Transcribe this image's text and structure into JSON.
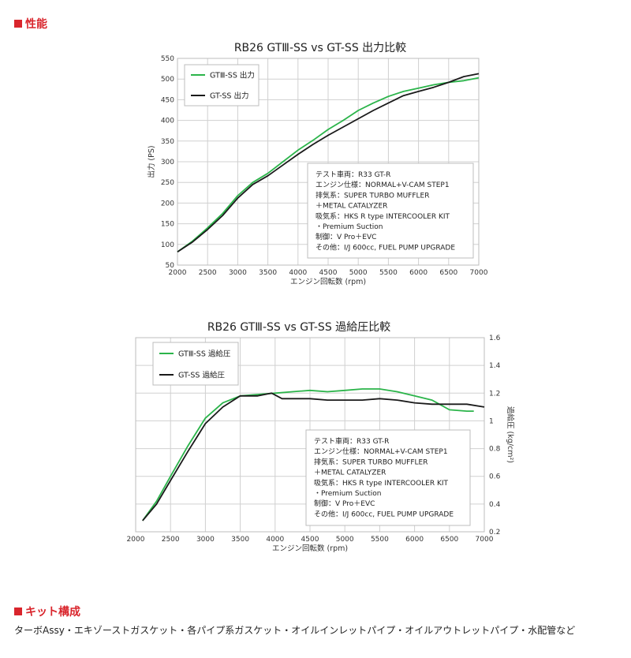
{
  "sections": {
    "performance": "性能",
    "kit": "キット構成",
    "kit_text": "ターボAssy・エキゾーストガスケット・各パイプ系ガスケット・オイルインレットパイプ・オイルアウトレットパイプ・水配管など"
  },
  "colors": {
    "accent": "#d9252c",
    "series_a": "#2bb44a",
    "series_b": "#1a1a1a"
  },
  "chart_data": [
    {
      "type": "line",
      "title": "RB26 GTⅢ-SS vs GT-SS 出力比較",
      "xlabel": "エンジン回転数 (rpm)",
      "ylabel": "出力 (PS)",
      "xlim": [
        2000,
        7000
      ],
      "ylim": [
        50,
        550
      ],
      "xticks": [
        2000,
        2500,
        3000,
        3500,
        4000,
        4500,
        5000,
        5500,
        6000,
        6500,
        7000
      ],
      "yticks": [
        50,
        100,
        150,
        200,
        250,
        300,
        350,
        400,
        450,
        500,
        550
      ],
      "legend": "top-left",
      "series": [
        {
          "name": "GTⅢ-SS 出力",
          "color": "#2bb44a",
          "x": [
            2000,
            2250,
            2500,
            2750,
            3000,
            3250,
            3500,
            3750,
            4000,
            4250,
            4500,
            4750,
            5000,
            5250,
            5500,
            5750,
            6000,
            6250,
            6500,
            6750,
            7000
          ],
          "y": [
            82,
            108,
            140,
            175,
            218,
            250,
            272,
            300,
            328,
            352,
            378,
            400,
            424,
            442,
            458,
            470,
            478,
            486,
            492,
            496,
            503
          ]
        },
        {
          "name": "GT-SS 出力",
          "color": "#1a1a1a",
          "x": [
            2000,
            2250,
            2500,
            2750,
            3000,
            3250,
            3500,
            3750,
            4000,
            4250,
            4500,
            4750,
            5000,
            5250,
            5500,
            5750,
            6000,
            6250,
            6500,
            6750,
            7000
          ],
          "y": [
            82,
            106,
            136,
            170,
            212,
            245,
            266,
            292,
            318,
            342,
            364,
            384,
            404,
            424,
            442,
            460,
            470,
            480,
            492,
            506,
            513
          ]
        }
      ],
      "annotations": [
        "テスト車両：R33 GT-R",
        "エンジン仕様：NORMAL+V-CAM STEP1",
        "排気系：SUPER TURBO MUFFLER",
        "＋METAL CATALYZER",
        "吸気系：HKS R type INTERCOOLER KIT",
        "・Premium Suction",
        "制御：V Pro＋EVC",
        "その他：I/J 600cc, FUEL PUMP UPGRADE"
      ]
    },
    {
      "type": "line",
      "title": "RB26 GTⅢ-SS vs GT-SS 過給圧比較",
      "xlabel": "エンジン回転数 (rpm)",
      "ylabel": "過給圧 (kg/cm²)",
      "xlim": [
        2000,
        7000
      ],
      "ylim": [
        0.2,
        1.6
      ],
      "xticks": [
        2000,
        2500,
        3000,
        3500,
        4000,
        4500,
        5000,
        5500,
        6000,
        6500,
        7000
      ],
      "yticks": [
        0.2,
        0.4,
        0.6,
        0.8,
        1,
        1.2,
        1.4,
        1.6
      ],
      "ytick_labels": [
        "0.2",
        "0.4",
        "0.6",
        "0.8",
        "1",
        "1.2",
        "1.4",
        "1.6"
      ],
      "legend": "top-left",
      "series": [
        {
          "name": "GTⅢ-SS 過給圧",
          "color": "#2bb44a",
          "x": [
            2100,
            2300,
            2500,
            2750,
            3000,
            3250,
            3500,
            3750,
            4000,
            4250,
            4500,
            4750,
            5000,
            5250,
            5500,
            5750,
            6000,
            6250,
            6500,
            6750,
            6850
          ],
          "y": [
            0.28,
            0.42,
            0.6,
            0.82,
            1.02,
            1.13,
            1.18,
            1.19,
            1.2,
            1.21,
            1.22,
            1.21,
            1.22,
            1.23,
            1.23,
            1.21,
            1.18,
            1.15,
            1.08,
            1.07,
            1.07
          ]
        },
        {
          "name": "GT-SS 過給圧",
          "color": "#1a1a1a",
          "x": [
            2100,
            2300,
            2500,
            2750,
            3000,
            3250,
            3500,
            3750,
            3950,
            4100,
            4500,
            4750,
            5000,
            5250,
            5500,
            5750,
            6000,
            6250,
            6500,
            6750,
            7000
          ],
          "y": [
            0.28,
            0.4,
            0.57,
            0.78,
            0.98,
            1.1,
            1.18,
            1.18,
            1.2,
            1.16,
            1.16,
            1.15,
            1.15,
            1.15,
            1.16,
            1.15,
            1.13,
            1.12,
            1.12,
            1.12,
            1.1
          ]
        }
      ],
      "annotations": [
        "テスト車両：R33 GT-R",
        "エンジン仕様：NORMAL+V-CAM STEP1",
        "排気系：SUPER TURBO MUFFLER",
        "＋METAL CATALYZER",
        "吸気系：HKS R type INTERCOOLER KIT",
        "・Premium Suction",
        "制御：V Pro＋EVC",
        "その他：I/J 600cc, FUEL PUMP UPGRADE"
      ]
    }
  ]
}
